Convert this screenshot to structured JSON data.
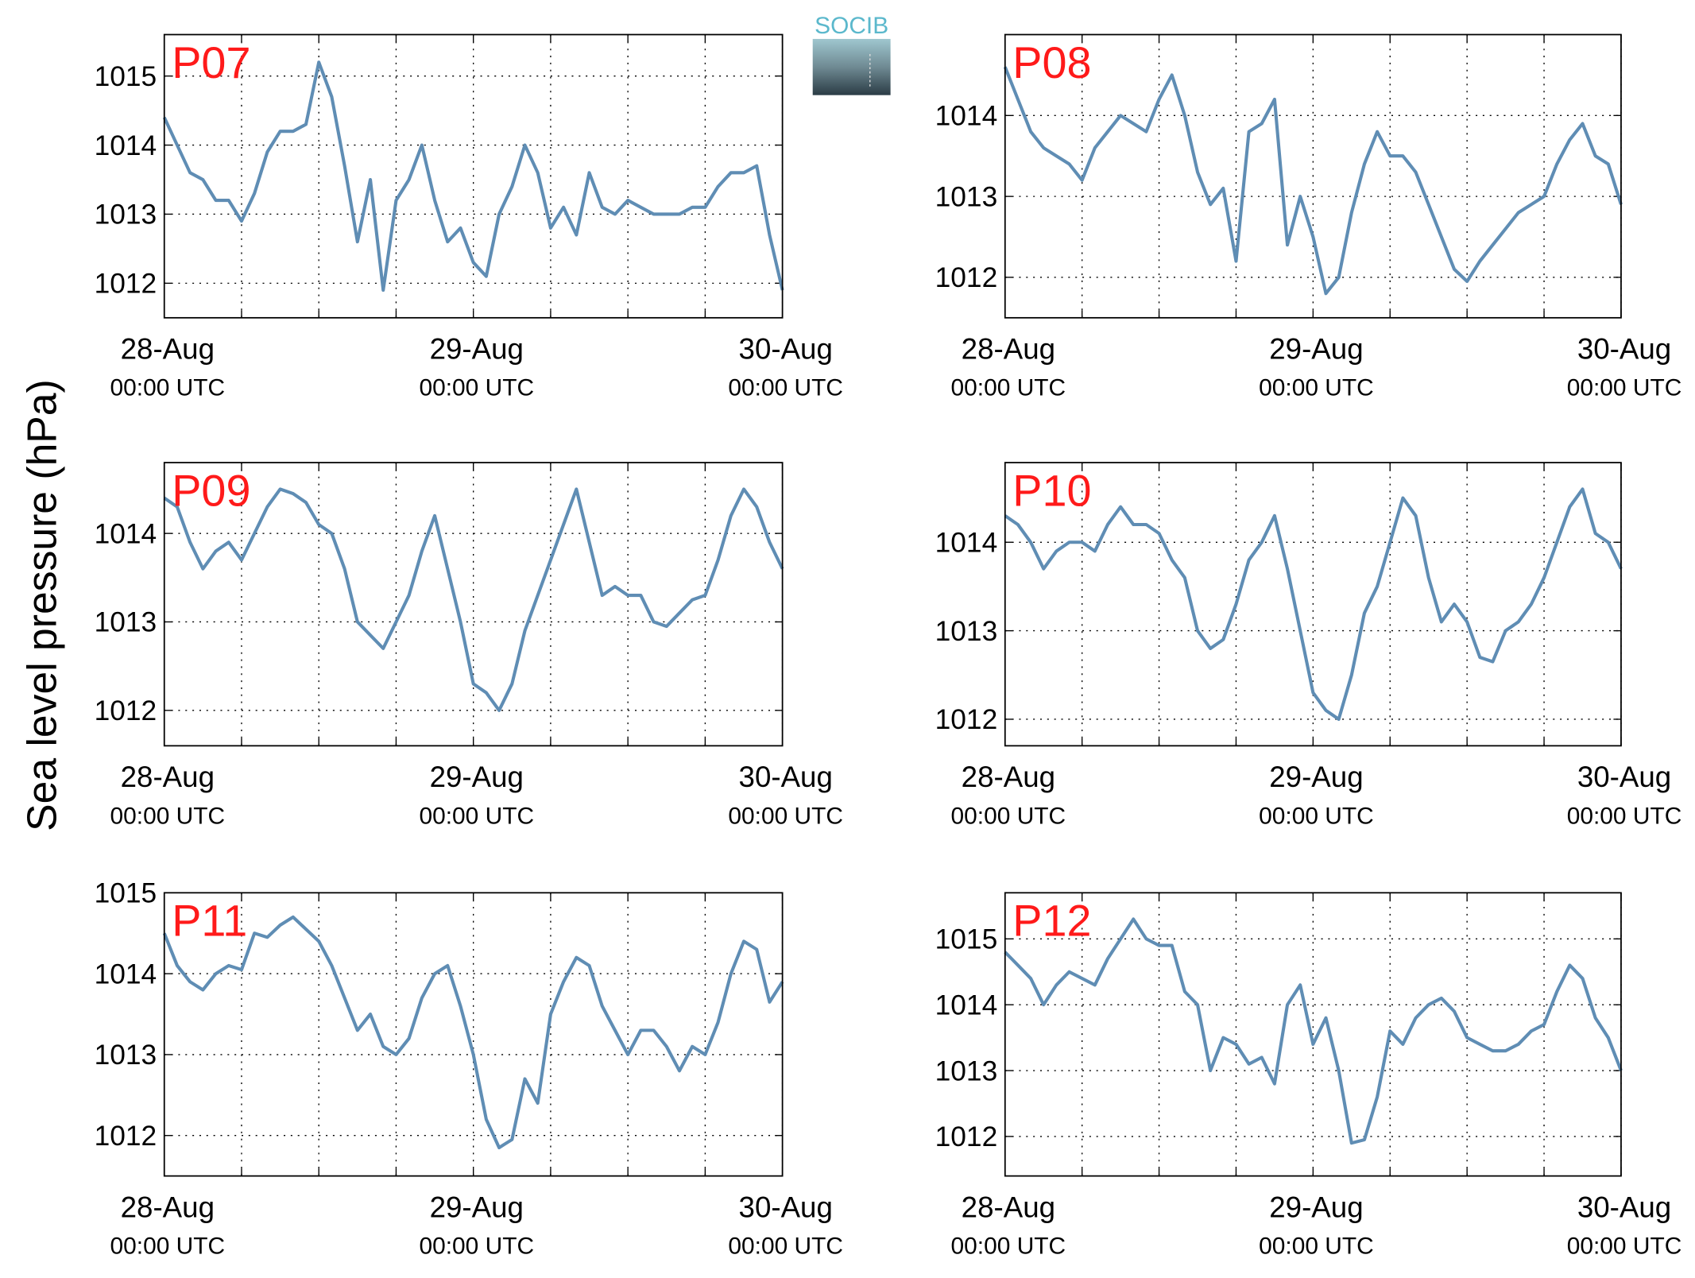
{
  "figure": {
    "ylabel": "Sea level pressure (hPa)",
    "logo": "SOCIB"
  },
  "chart_data": [
    {
      "type": "line",
      "title": "P07",
      "x": [
        0,
        1,
        2,
        3,
        4,
        5,
        6,
        7,
        8,
        9,
        10,
        11,
        12,
        13,
        14,
        15,
        16,
        17,
        18,
        19,
        20,
        21,
        22,
        23,
        24,
        25,
        26,
        27,
        28,
        29,
        30,
        31,
        32,
        33,
        34,
        35,
        36,
        37,
        38,
        39,
        40,
        41,
        42,
        43,
        44,
        45,
        46,
        47,
        48
      ],
      "series": [
        {
          "color": "#5f8db4",
          "values": [
            1014.4,
            1014.0,
            1013.6,
            1013.5,
            1013.2,
            1013.2,
            1012.9,
            1013.3,
            1013.9,
            1014.2,
            1014.2,
            1014.3,
            1015.2,
            1014.7,
            1013.7,
            1012.6,
            1013.5,
            1011.9,
            1013.2,
            1013.5,
            1014.0,
            1013.2,
            1012.6,
            1012.8,
            1012.3,
            1012.1,
            1013.0,
            1013.4,
            1014.0,
            1013.6,
            1012.8,
            1013.1,
            1012.7,
            1013.6,
            1013.1,
            1013.0,
            1013.2,
            1013.1,
            1013.0,
            1013.0,
            1013.0,
            1013.1,
            1013.1,
            1013.4,
            1013.6,
            1013.6,
            1013.7,
            1012.7,
            1011.9
          ]
        }
      ],
      "xlim": [
        0,
        48
      ],
      "ylim": [
        1011.5,
        1015.6
      ],
      "yticks": [
        1012,
        1013,
        1014,
        1015
      ],
      "xticks": [
        {
          "value": 0,
          "label": [
            "28-Aug",
            "00:00 UTC"
          ]
        },
        {
          "value": 6,
          "label": null
        },
        {
          "value": 12,
          "label": null
        },
        {
          "value": 18,
          "label": null
        },
        {
          "value": 24,
          "label": [
            "29-Aug",
            "00:00 UTC"
          ]
        },
        {
          "value": 30,
          "label": null
        },
        {
          "value": 36,
          "label": null
        },
        {
          "value": 42,
          "label": null
        },
        {
          "value": 48,
          "label": [
            "30-Aug",
            "00:00 UTC"
          ]
        }
      ],
      "grid": true
    },
    {
      "type": "line",
      "title": "P08",
      "x": [
        0,
        1,
        2,
        3,
        4,
        5,
        6,
        7,
        8,
        9,
        10,
        11,
        12,
        13,
        14,
        15,
        16,
        17,
        18,
        19,
        20,
        21,
        22,
        23,
        24,
        25,
        26,
        27,
        28,
        29,
        30,
        31,
        32,
        33,
        34,
        35,
        36,
        37,
        38,
        39,
        40,
        41,
        42,
        43,
        44,
        45,
        46,
        47,
        48
      ],
      "series": [
        {
          "color": "#5f8db4",
          "values": [
            1014.6,
            1014.2,
            1013.8,
            1013.6,
            1013.5,
            1013.4,
            1013.2,
            1013.6,
            1013.8,
            1014.0,
            1013.9,
            1013.8,
            1014.2,
            1014.5,
            1014.0,
            1013.3,
            1012.9,
            1013.1,
            1012.2,
            1013.8,
            1013.9,
            1014.2,
            1012.4,
            1013.0,
            1012.5,
            1011.8,
            1012.0,
            1012.8,
            1013.4,
            1013.8,
            1013.5,
            1013.5,
            1013.3,
            1012.9,
            1012.5,
            1012.1,
            1011.95,
            1012.2,
            1012.4,
            1012.6,
            1012.8,
            1012.9,
            1013.0,
            1013.4,
            1013.7,
            1013.9,
            1013.5,
            1013.4,
            1012.9
          ]
        }
      ],
      "xlim": [
        0,
        48
      ],
      "ylim": [
        1011.5,
        1015
      ],
      "yticks": [
        1012,
        1013,
        1014
      ],
      "xticks": [
        {
          "value": 0,
          "label": [
            "28-Aug",
            "00:00 UTC"
          ]
        },
        {
          "value": 6,
          "label": null
        },
        {
          "value": 12,
          "label": null
        },
        {
          "value": 18,
          "label": null
        },
        {
          "value": 24,
          "label": [
            "29-Aug",
            "00:00 UTC"
          ]
        },
        {
          "value": 30,
          "label": null
        },
        {
          "value": 36,
          "label": null
        },
        {
          "value": 42,
          "label": null
        },
        {
          "value": 48,
          "label": [
            "30-Aug",
            "00:00 UTC"
          ]
        }
      ],
      "grid": true
    },
    {
      "type": "line",
      "title": "P09",
      "x": [
        0,
        1,
        2,
        3,
        4,
        5,
        6,
        7,
        8,
        9,
        10,
        11,
        12,
        13,
        14,
        15,
        16,
        17,
        18,
        19,
        20,
        21,
        22,
        23,
        24,
        25,
        26,
        27,
        28,
        29,
        30,
        31,
        32,
        33,
        34,
        35,
        36,
        37,
        38,
        39,
        40,
        41,
        42,
        43,
        44,
        45,
        46,
        47,
        48
      ],
      "series": [
        {
          "color": "#5f8db4",
          "values": [
            1014.4,
            1014.3,
            1013.9,
            1013.6,
            1013.8,
            1013.9,
            1013.7,
            1014.0,
            1014.3,
            1014.5,
            1014.45,
            1014.35,
            1014.1,
            1014.0,
            1013.6,
            1013.0,
            1012.85,
            1012.7,
            1013.0,
            1013.3,
            1013.8,
            1014.2,
            1013.6,
            1013.0,
            1012.3,
            1012.2,
            1012.0,
            1012.3,
            1012.9,
            1013.3,
            1013.7,
            1014.1,
            1014.5,
            1013.9,
            1013.3,
            1013.4,
            1013.3,
            1013.3,
            1013.0,
            1012.95,
            1013.1,
            1013.25,
            1013.3,
            1013.7,
            1014.2,
            1014.5,
            1014.3,
            1013.9,
            1013.6
          ]
        }
      ],
      "xlim": [
        0,
        48
      ],
      "ylim": [
        1011.6,
        1014.8
      ],
      "yticks": [
        1012,
        1013,
        1014
      ],
      "xticks": [
        {
          "value": 0,
          "label": [
            "28-Aug",
            "00:00 UTC"
          ]
        },
        {
          "value": 6,
          "label": null
        },
        {
          "value": 12,
          "label": null
        },
        {
          "value": 18,
          "label": null
        },
        {
          "value": 24,
          "label": [
            "29-Aug",
            "00:00 UTC"
          ]
        },
        {
          "value": 30,
          "label": null
        },
        {
          "value": 36,
          "label": null
        },
        {
          "value": 42,
          "label": null
        },
        {
          "value": 48,
          "label": [
            "30-Aug",
            "00:00 UTC"
          ]
        }
      ],
      "grid": true
    },
    {
      "type": "line",
      "title": "P10",
      "x": [
        0,
        1,
        2,
        3,
        4,
        5,
        6,
        7,
        8,
        9,
        10,
        11,
        12,
        13,
        14,
        15,
        16,
        17,
        18,
        19,
        20,
        21,
        22,
        23,
        24,
        25,
        26,
        27,
        28,
        29,
        30,
        31,
        32,
        33,
        34,
        35,
        36,
        37,
        38,
        39,
        40,
        41,
        42,
        43,
        44,
        45,
        46,
        47,
        48
      ],
      "series": [
        {
          "color": "#5f8db4",
          "values": [
            1014.3,
            1014.2,
            1014.0,
            1013.7,
            1013.9,
            1014.0,
            1014.0,
            1013.9,
            1014.2,
            1014.4,
            1014.2,
            1014.2,
            1014.1,
            1013.8,
            1013.6,
            1013.0,
            1012.8,
            1012.9,
            1013.3,
            1013.8,
            1014.0,
            1014.3,
            1013.7,
            1013.0,
            1012.3,
            1012.1,
            1012.0,
            1012.5,
            1013.2,
            1013.5,
            1014.0,
            1014.5,
            1014.3,
            1013.6,
            1013.1,
            1013.3,
            1013.1,
            1012.7,
            1012.65,
            1013.0,
            1013.1,
            1013.3,
            1013.6,
            1014.0,
            1014.4,
            1014.6,
            1014.1,
            1014.0,
            1013.7
          ]
        }
      ],
      "xlim": [
        0,
        48
      ],
      "ylim": [
        1011.7,
        1014.9
      ],
      "yticks": [
        1012,
        1013,
        1014
      ],
      "xticks": [
        {
          "value": 0,
          "label": [
            "28-Aug",
            "00:00 UTC"
          ]
        },
        {
          "value": 6,
          "label": null
        },
        {
          "value": 12,
          "label": null
        },
        {
          "value": 18,
          "label": null
        },
        {
          "value": 24,
          "label": [
            "29-Aug",
            "00:00 UTC"
          ]
        },
        {
          "value": 30,
          "label": null
        },
        {
          "value": 36,
          "label": null
        },
        {
          "value": 42,
          "label": null
        },
        {
          "value": 48,
          "label": [
            "30-Aug",
            "00:00 UTC"
          ]
        }
      ],
      "grid": true
    },
    {
      "type": "line",
      "title": "P11",
      "x": [
        0,
        1,
        2,
        3,
        4,
        5,
        6,
        7,
        8,
        9,
        10,
        11,
        12,
        13,
        14,
        15,
        16,
        17,
        18,
        19,
        20,
        21,
        22,
        23,
        24,
        25,
        26,
        27,
        28,
        29,
        30,
        31,
        32,
        33,
        34,
        35,
        36,
        37,
        38,
        39,
        40,
        41,
        42,
        43,
        44,
        45,
        46,
        47,
        48
      ],
      "series": [
        {
          "color": "#5f8db4",
          "values": [
            1014.5,
            1014.1,
            1013.9,
            1013.8,
            1014.0,
            1014.1,
            1014.05,
            1014.5,
            1014.45,
            1014.6,
            1014.7,
            1014.55,
            1014.4,
            1014.1,
            1013.7,
            1013.3,
            1013.5,
            1013.1,
            1013.0,
            1013.2,
            1013.7,
            1014.0,
            1014.1,
            1013.6,
            1013.0,
            1012.2,
            1011.85,
            1011.95,
            1012.7,
            1012.4,
            1013.5,
            1013.9,
            1014.2,
            1014.1,
            1013.6,
            1013.3,
            1013.0,
            1013.3,
            1013.3,
            1013.1,
            1012.8,
            1013.1,
            1013.0,
            1013.4,
            1014.0,
            1014.4,
            1014.3,
            1013.65,
            1013.9
          ]
        }
      ],
      "xlim": [
        0,
        48
      ],
      "ylim": [
        1011.5,
        1015
      ],
      "yticks": [
        1012,
        1013,
        1014,
        1015
      ],
      "xticks": [
        {
          "value": 0,
          "label": [
            "28-Aug",
            "00:00 UTC"
          ]
        },
        {
          "value": 6,
          "label": null
        },
        {
          "value": 12,
          "label": null
        },
        {
          "value": 18,
          "label": null
        },
        {
          "value": 24,
          "label": [
            "29-Aug",
            "00:00 UTC"
          ]
        },
        {
          "value": 30,
          "label": null
        },
        {
          "value": 36,
          "label": null
        },
        {
          "value": 42,
          "label": null
        },
        {
          "value": 48,
          "label": [
            "30-Aug",
            "00:00 UTC"
          ]
        }
      ],
      "grid": true
    },
    {
      "type": "line",
      "title": "P12",
      "x": [
        0,
        1,
        2,
        3,
        4,
        5,
        6,
        7,
        8,
        9,
        10,
        11,
        12,
        13,
        14,
        15,
        16,
        17,
        18,
        19,
        20,
        21,
        22,
        23,
        24,
        25,
        26,
        27,
        28,
        29,
        30,
        31,
        32,
        33,
        34,
        35,
        36,
        37,
        38,
        39,
        40,
        41,
        42,
        43,
        44,
        45,
        46,
        47,
        48
      ],
      "series": [
        {
          "color": "#5f8db4",
          "values": [
            1014.8,
            1014.6,
            1014.4,
            1014.0,
            1014.3,
            1014.5,
            1014.4,
            1014.3,
            1014.7,
            1015.0,
            1015.3,
            1015.0,
            1014.9,
            1014.9,
            1014.2,
            1014.0,
            1013.0,
            1013.5,
            1013.4,
            1013.1,
            1013.2,
            1012.8,
            1014.0,
            1014.3,
            1013.4,
            1013.8,
            1013.0,
            1011.9,
            1011.95,
            1012.6,
            1013.6,
            1013.4,
            1013.8,
            1014.0,
            1014.1,
            1013.9,
            1013.5,
            1013.4,
            1013.3,
            1013.3,
            1013.4,
            1013.6,
            1013.7,
            1014.2,
            1014.6,
            1014.4,
            1013.8,
            1013.5,
            1013.0
          ]
        }
      ],
      "xlim": [
        0,
        48
      ],
      "ylim": [
        1011.4,
        1015.7
      ],
      "yticks": [
        1012,
        1013,
        1014,
        1015
      ],
      "xticks": [
        {
          "value": 0,
          "label": [
            "28-Aug",
            "00:00 UTC"
          ]
        },
        {
          "value": 6,
          "label": null
        },
        {
          "value": 12,
          "label": null
        },
        {
          "value": 18,
          "label": null
        },
        {
          "value": 24,
          "label": [
            "29-Aug",
            "00:00 UTC"
          ]
        },
        {
          "value": 30,
          "label": null
        },
        {
          "value": 36,
          "label": null
        },
        {
          "value": 42,
          "label": null
        },
        {
          "value": 48,
          "label": [
            "30-Aug",
            "00:00 UTC"
          ]
        }
      ],
      "grid": true
    }
  ]
}
